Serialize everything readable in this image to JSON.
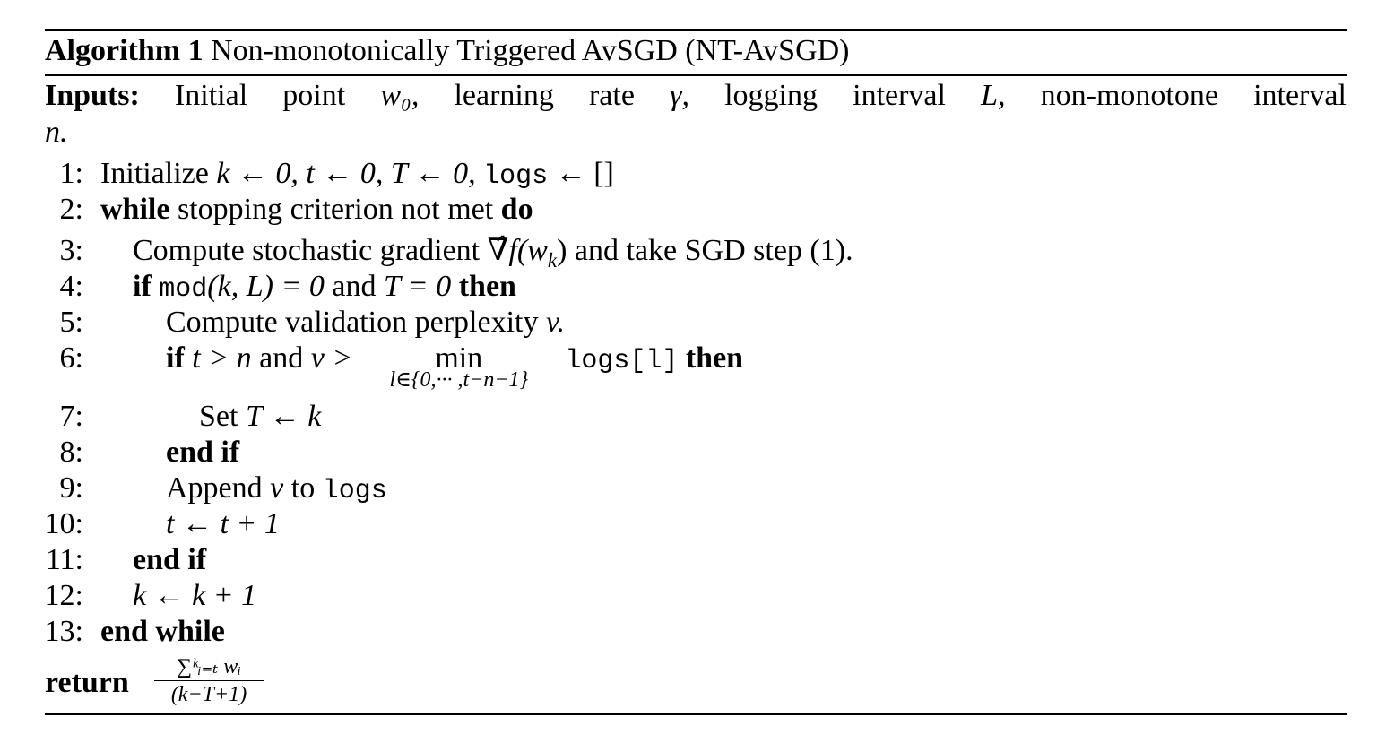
{
  "algorithm": {
    "label": "Algorithm 1",
    "title": "Non-monotonically Triggered AvSGD (NT-AvSGD)"
  },
  "inputs": {
    "label": "Inputs:",
    "words": [
      "Initial",
      "point",
      "w₀,",
      "learning",
      "rate",
      "γ,",
      "logging",
      "interval",
      "L,",
      "non-monotone",
      "interval"
    ],
    "continuation": "n."
  },
  "lines": [
    {
      "num": "1:",
      "text_a": "Initialize",
      "math_a": "k ← 0, t ← 0, T ← 0,",
      "code": "logs",
      "math_b": "← []"
    },
    {
      "num": "2:",
      "kw_a": "while",
      "text": "stopping criterion not met",
      "kw_b": "do"
    },
    {
      "num": "3:",
      "text_a": "Compute stochastic gradient",
      "math": "∇̂f(w",
      "sub": "k",
      "math_close": ")",
      "text_b": "and take SGD step (1)."
    },
    {
      "num": "4:",
      "kw_a": "if",
      "code": "mod",
      "math": "(k, L) = 0",
      "text": "and",
      "math_b": "T = 0",
      "kw_b": "then"
    },
    {
      "num": "5:",
      "text": "Compute validation perplexity",
      "math": "v."
    },
    {
      "num": "6:",
      "kw_a": "if",
      "math_a": "t > n",
      "text": "and",
      "math_b": "v >",
      "op": "min",
      "limit": "l∈{0,··· ,t−n−1}",
      "code": "logs[l]",
      "kw_b": "then"
    },
    {
      "num": "7:",
      "text": "Set",
      "math": "T ← k"
    },
    {
      "num": "8:",
      "kw": "end if"
    },
    {
      "num": "9:",
      "text_a": "Append",
      "math": "v",
      "text_b": "to",
      "code": "logs"
    },
    {
      "num": "10:",
      "math": "t ← t + 1"
    },
    {
      "num": "11:",
      "kw": "end if"
    },
    {
      "num": "12:",
      "math": "k ← k + 1"
    },
    {
      "num": "13:",
      "kw": "end while"
    }
  ],
  "return": {
    "kw": "return",
    "numerator": "∑ᵏᵢ₌ₜ wᵢ",
    "denominator": "(k−T+1)"
  }
}
